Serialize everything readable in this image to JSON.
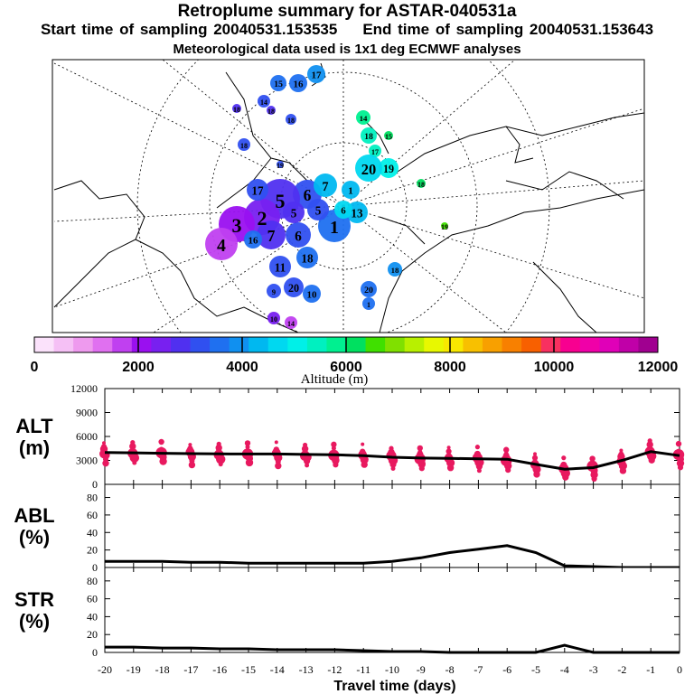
{
  "header": {
    "title": "Retroplume summary for ASTAR-040531a",
    "start_label": "Start time of sampling 20040531.153535",
    "end_label": "End time of sampling 20040531.153643",
    "met_label": "Meteorological data used is 1x1 deg ECMWF analyses"
  },
  "colorbar": {
    "label": "Altitude (m)",
    "tick_labels": [
      "0",
      "2000",
      "4000",
      "6000",
      "8000",
      "10000",
      "12000"
    ],
    "colors": [
      "#fbe2fb",
      "#f5c0f5",
      "#ee9aee",
      "#e070f0",
      "#c040f0",
      "#9a10f0",
      "#7820f0",
      "#5030f0",
      "#3050f0",
      "#1f70f0",
      "#1090f0",
      "#00b8f0",
      "#00d8f0",
      "#00f0e8",
      "#00f0c0",
      "#00f090",
      "#00e060",
      "#40e000",
      "#80e000",
      "#b8f000",
      "#e8f800",
      "#f8e800",
      "#f8c000",
      "#f8a000",
      "#f88000",
      "#f86000",
      "#f83060",
      "#f80090",
      "#f000a8",
      "#e000b8",
      "#c000a8",
      "#a00090"
    ]
  },
  "map": {
    "labels": [
      "15",
      "16",
      "17",
      "14",
      "18",
      "19",
      "20",
      "1",
      "2",
      "3",
      "4",
      "5",
      "6",
      "7",
      "8",
      "9",
      "10",
      "11",
      "12",
      "13"
    ]
  },
  "chart_data": [
    {
      "type": "line",
      "panel_label": "ALT\n(m)",
      "ylabel_lines": [
        "ALT",
        "(m)"
      ],
      "x": [
        -20,
        -19,
        -18,
        -17,
        -16,
        -15,
        -14,
        -13,
        -12,
        -11,
        -10,
        -9,
        -8,
        -7,
        -6,
        -5,
        -4,
        -3,
        -2,
        -1,
        0
      ],
      "values": [
        4000,
        3950,
        3900,
        3850,
        3820,
        3800,
        3800,
        3750,
        3700,
        3600,
        3400,
        3300,
        3250,
        3200,
        3150,
        2500,
        1900,
        2100,
        3000,
        4100,
        3600
      ],
      "ylim": [
        0,
        12000
      ],
      "yticks": [
        "0",
        "3000",
        "6000",
        "9000",
        "12000"
      ],
      "marker_color": "#e8195f"
    },
    {
      "type": "line",
      "ylabel_lines": [
        "ABL",
        "(%)"
      ],
      "x": [
        -20,
        -19,
        -18,
        -17,
        -16,
        -15,
        -14,
        -13,
        -12,
        -11,
        -10,
        -9,
        -8,
        -7,
        -6,
        -5,
        -4,
        -3,
        -2,
        -1,
        0
      ],
      "values": [
        7,
        7,
        7,
        6,
        6,
        5,
        5,
        5,
        5,
        5,
        7,
        11,
        17,
        21,
        25,
        17,
        2,
        1,
        0,
        0,
        0
      ],
      "ylim": [
        0,
        95
      ],
      "yticks": [
        "0",
        "20",
        "40",
        "60",
        "80"
      ]
    },
    {
      "type": "line",
      "ylabel_lines": [
        "STR",
        "(%)"
      ],
      "x": [
        -20,
        -19,
        -18,
        -17,
        -16,
        -15,
        -14,
        -13,
        -12,
        -11,
        -10,
        -9,
        -8,
        -7,
        -6,
        -5,
        -4,
        -3,
        -2,
        -1,
        0
      ],
      "values": [
        6,
        6,
        5,
        5,
        4,
        4,
        3,
        3,
        3,
        2,
        1,
        1,
        0,
        0,
        0,
        0,
        8,
        0,
        0,
        0,
        0
      ],
      "ylim": [
        0,
        95
      ],
      "yticks": [
        "0",
        "20",
        "40",
        "60",
        "80"
      ]
    }
  ],
  "xaxis": {
    "tick_labels": [
      "-20",
      "-19",
      "-18",
      "-17",
      "-16",
      "-15",
      "-14",
      "-13",
      "-12",
      "-11",
      "-10",
      "-9",
      "-8",
      "-7",
      "-6",
      "-5",
      "-4",
      "-3",
      "-2",
      "-1",
      "0"
    ],
    "xlabel": "Travel time (days)"
  }
}
